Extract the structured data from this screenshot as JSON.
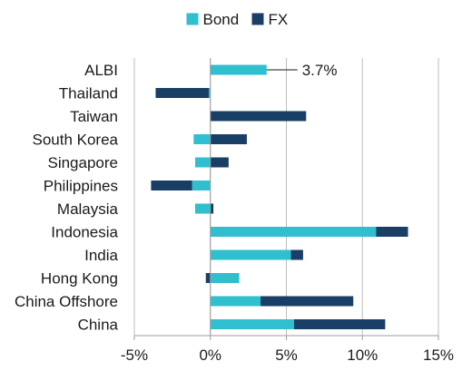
{
  "chart_data": {
    "type": "bar",
    "orientation": "horizontal",
    "stacked": true,
    "title": "",
    "xlabel": "",
    "ylabel": "",
    "categories": [
      "ALBI",
      "Thailand",
      "Taiwan",
      "South Korea",
      "Singapore",
      "Philippines",
      "Malaysia",
      "Indonesia",
      "India",
      "Hong Kong",
      "China Offshore",
      "China"
    ],
    "series": [
      {
        "name": "Bond",
        "color": "#2fbfcf",
        "values": [
          3.7,
          -0.1,
          0.0,
          -1.1,
          -1.0,
          -1.2,
          -1.0,
          10.9,
          5.3,
          1.9,
          3.3,
          5.5
        ]
      },
      {
        "name": "FX",
        "color": "#1a3f66",
        "values": [
          0.0,
          -3.5,
          6.3,
          2.4,
          1.2,
          -2.7,
          0.2,
          2.1,
          0.8,
          -0.3,
          6.1,
          6.0
        ]
      }
    ],
    "xlim": [
      -5,
      15
    ],
    "x_ticks": [
      -5,
      0,
      5,
      10,
      15
    ],
    "x_tick_labels": [
      "-5%",
      "0%",
      "5%",
      "10%",
      "15%"
    ],
    "grid": "vertical",
    "legend": {
      "position": "top",
      "entries": [
        "Bond",
        "FX"
      ]
    },
    "annotations": [
      {
        "category": "ALBI",
        "text": "3.7%"
      }
    ]
  }
}
